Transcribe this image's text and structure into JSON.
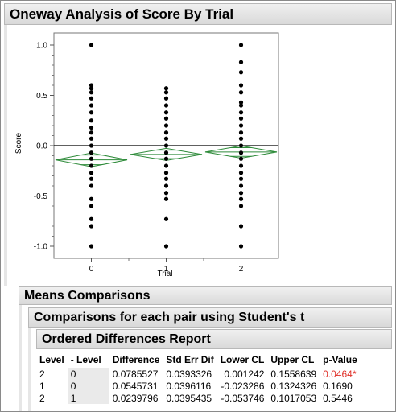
{
  "report": {
    "title": "Oneway Analysis of Score By Trial",
    "means_comparisons": "Means Comparisons",
    "pairwise_title": "Comparisons for each pair using Student's t",
    "ordered_diff_title": "Ordered Differences Report"
  },
  "colors": {
    "diamond": "#2e8b3a",
    "points": "#000000",
    "significant": "#e0322b",
    "header_bg": "#e4e4e4"
  },
  "chart_data": {
    "type": "scatter",
    "xlabel": "Trial",
    "ylabel": "Score",
    "categories": [
      "0",
      "1",
      "2"
    ],
    "ylim": [
      -1.12,
      1.12
    ],
    "yticks": [
      1.0,
      0.5,
      0.0,
      -0.5,
      -1.0
    ],
    "ytick_labels": [
      "1.0",
      "0.5",
      "0.0",
      "-0.5",
      "-1.0"
    ],
    "grand_mean": 0.0,
    "points": [
      {
        "category": "0",
        "values": [
          1.0,
          0.6,
          0.57,
          0.53,
          0.47,
          0.4,
          0.33,
          0.25,
          0.18,
          0.13,
          0.07,
          0.0,
          -0.07,
          -0.13,
          -0.2,
          -0.27,
          -0.33,
          -0.4,
          -0.53,
          -0.6,
          -0.73,
          -0.8,
          -1.0
        ]
      },
      {
        "category": "1",
        "values": [
          0.57,
          0.53,
          0.47,
          0.4,
          0.33,
          0.27,
          0.2,
          0.13,
          0.07,
          0.0,
          -0.07,
          -0.13,
          -0.2,
          -0.27,
          -0.33,
          -0.4,
          -0.47,
          -0.53,
          -0.73,
          -1.0
        ]
      },
      {
        "category": "2",
        "values": [
          1.0,
          0.83,
          0.73,
          0.6,
          0.53,
          0.43,
          0.4,
          0.33,
          0.27,
          0.2,
          0.13,
          0.07,
          0.0,
          -0.07,
          -0.13,
          -0.2,
          -0.27,
          -0.33,
          -0.4,
          -0.47,
          -0.53,
          -0.6,
          -0.8,
          -1.0
        ]
      }
    ],
    "means_diamonds": [
      {
        "category": "0",
        "mean": -0.141,
        "lower": -0.209,
        "upper": -0.073
      },
      {
        "category": "1",
        "mean": -0.087,
        "lower": -0.147,
        "upper": -0.027
      },
      {
        "category": "2",
        "mean": -0.063,
        "lower": -0.124,
        "upper": -0.002
      }
    ]
  },
  "table": {
    "headers": [
      "Level",
      "- Level",
      "Difference",
      "Std Err Dif",
      "Lower CL",
      "Upper CL",
      "p-Value"
    ],
    "rows": [
      {
        "level": "2",
        "minus_level": "0",
        "difference": "0.0785527",
        "std_err": "0.0393326",
        "lower_cl": "0.001242",
        "upper_cl": "0.1558639",
        "p_value": "0.0464*",
        "significant": true
      },
      {
        "level": "1",
        "minus_level": "0",
        "difference": "0.0545731",
        "std_err": "0.0396116",
        "lower_cl": "-0.023286",
        "upper_cl": "0.1324326",
        "p_value": "0.1690",
        "significant": false
      },
      {
        "level": "2",
        "minus_level": "1",
        "difference": "0.0239796",
        "std_err": "0.0395435",
        "lower_cl": "-0.053746",
        "upper_cl": "0.1017053",
        "p_value": "0.5446",
        "significant": false
      }
    ]
  }
}
